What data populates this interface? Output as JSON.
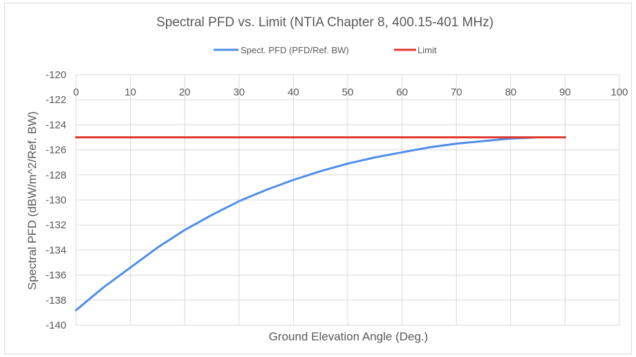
{
  "chart_data": {
    "type": "line",
    "title": "Spectral PFD vs. Limit (NTIA Chapter 8, 400.15-401 MHz)",
    "xlabel": "Ground Elevation Angle (Deg.)",
    "ylabel": "Spectral PFD (dBW/m^2/Ref. BW)",
    "xlim": [
      0,
      100
    ],
    "ylim": [
      -140,
      -120
    ],
    "x_ticks": [
      0,
      10,
      20,
      30,
      40,
      50,
      60,
      70,
      80,
      90,
      100
    ],
    "y_ticks": [
      -120,
      -122,
      -124,
      -126,
      -128,
      -130,
      -132,
      -134,
      -136,
      -138,
      -140
    ],
    "x_tick_labels": [
      "0",
      "10",
      "20",
      "30",
      "40",
      "50",
      "60",
      "70",
      "80",
      "90",
      "100"
    ],
    "y_tick_labels": [
      "-120",
      "-122",
      "-124",
      "-126",
      "-128",
      "-130",
      "-132",
      "-134",
      "-136",
      "-138",
      "-140"
    ],
    "grid": true,
    "legend_position": "top",
    "series": [
      {
        "name": "Spect. PFD (PFD/Ref. BW)",
        "color": "#4f8ee8",
        "x": [
          0,
          5,
          10,
          15,
          20,
          25,
          30,
          35,
          40,
          45,
          50,
          55,
          60,
          65,
          70,
          75,
          80,
          85,
          90
        ],
        "y": [
          -138.8,
          -137.0,
          -135.4,
          -133.8,
          -132.4,
          -131.2,
          -130.1,
          -129.2,
          -128.4,
          -127.7,
          -127.1,
          -126.6,
          -126.2,
          -125.8,
          -125.5,
          -125.3,
          -125.1,
          -125.0,
          -125.0
        ]
      },
      {
        "name": "Limit",
        "color": "#e0392b",
        "x": [
          0,
          90
        ],
        "y": [
          -125,
          -125
        ]
      }
    ]
  }
}
